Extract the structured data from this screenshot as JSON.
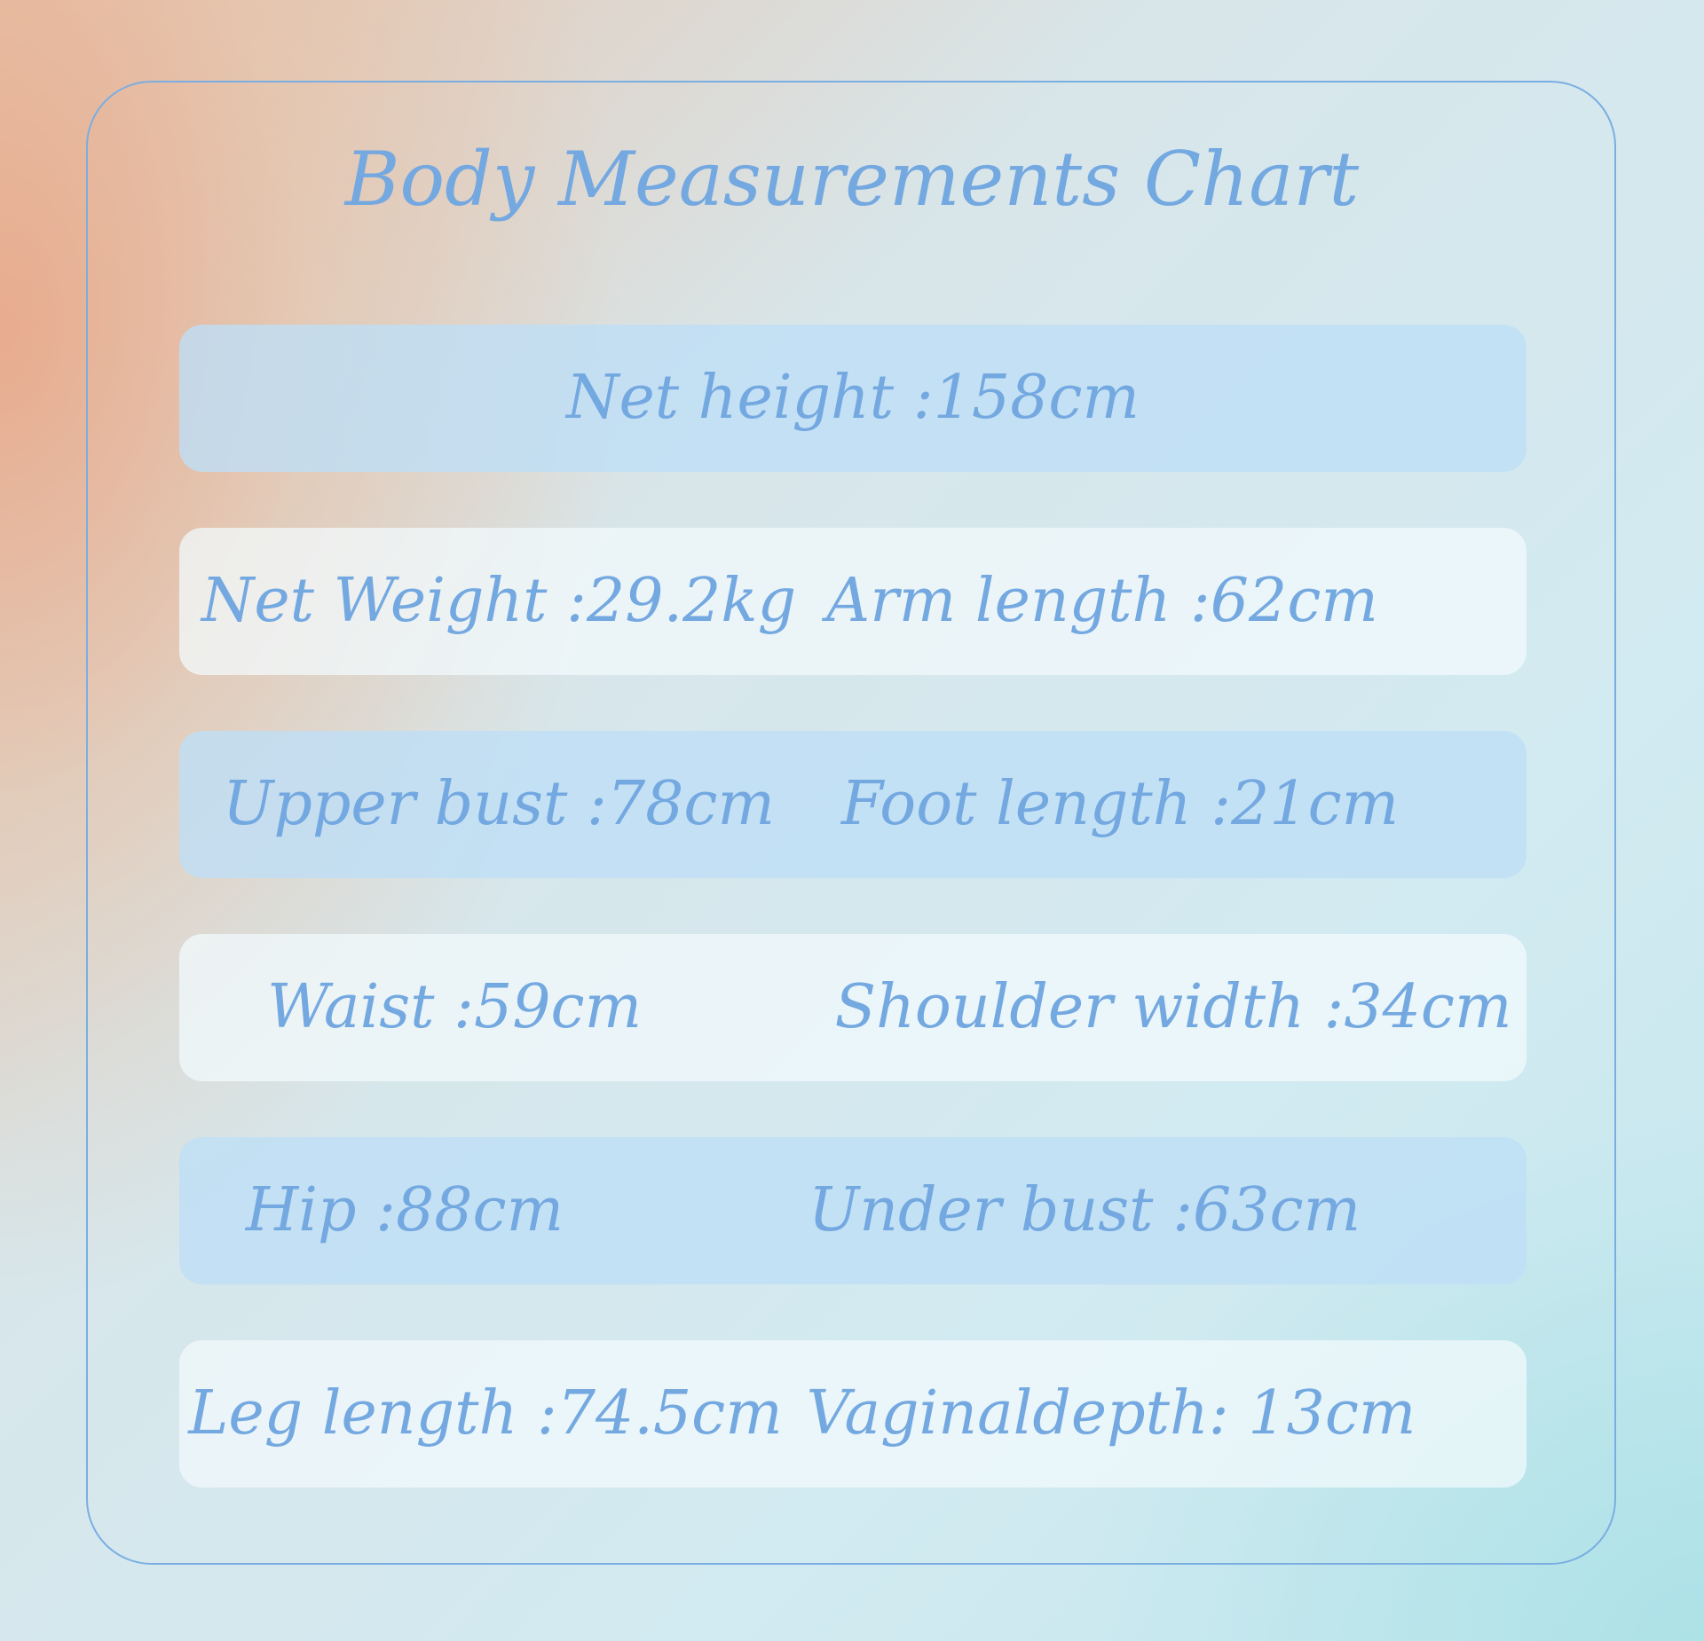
{
  "title": "Body Measurements Chart",
  "colors": {
    "text": "#74a8e0",
    "border": "#7aaee2",
    "row_blue": "#c5e3f5",
    "row_white": "#eef6fa"
  },
  "rows": [
    {
      "style": "blue",
      "items": [
        "Net height :158cm"
      ]
    },
    {
      "style": "white",
      "items": [
        "Net Weight :29.2kg",
        "Arm length :62cm"
      ]
    },
    {
      "style": "blue",
      "items": [
        "Upper bust :78cm",
        "Foot length :21cm"
      ]
    },
    {
      "style": "white",
      "items": [
        "Waist :59cm",
        "Shoulder width :34cm"
      ]
    },
    {
      "style": "blue",
      "items": [
        "Hip :88cm",
        "Under bust :63cm"
      ]
    },
    {
      "style": "white",
      "items": [
        "Leg length :74.5cm",
        "Vaginaldepth: 13cm"
      ]
    }
  ]
}
